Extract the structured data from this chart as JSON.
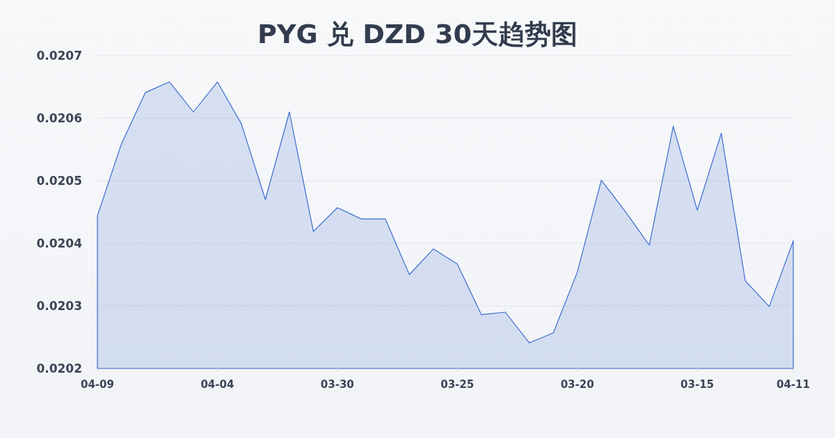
{
  "chart_data": {
    "type": "area",
    "title": "PYG 兑 DZD 30天趋势图",
    "categories": [
      "04-09",
      null,
      null,
      null,
      null,
      "04-04",
      null,
      null,
      null,
      null,
      "03-30",
      null,
      null,
      null,
      null,
      "03-25",
      null,
      null,
      null,
      null,
      "03-20",
      null,
      null,
      null,
      null,
      "03-15",
      null,
      null,
      null,
      "04-11"
    ],
    "values": [
      0.020444,
      0.020559,
      0.020641,
      0.020658,
      0.02061,
      0.020658,
      0.020591,
      0.02047,
      0.02061,
      0.020419,
      0.020457,
      0.020439,
      0.020439,
      0.02035,
      0.020391,
      0.020367,
      0.020286,
      0.02029,
      0.020241,
      0.020257,
      0.020354,
      0.020501,
      0.020451,
      0.020397,
      0.020587,
      0.020453,
      0.020576,
      0.02034,
      0.020299,
      0.020404
    ],
    "color": "#3a6bd0",
    "ylim": [
      0.0202,
      0.0207
    ],
    "yticks": [
      0.0202,
      0.0203,
      0.0204,
      0.0205,
      0.0206,
      0.0207
    ],
    "grid": "y"
  }
}
